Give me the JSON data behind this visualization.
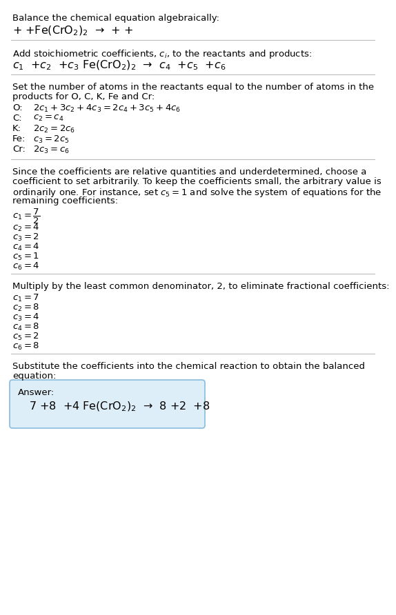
{
  "bg_color": "#ffffff",
  "text_color": "#000000",
  "separator_color": "#bbbbbb",
  "answer_box_color": "#deeef8",
  "answer_box_edge": "#88bbdd",
  "font_size": 9.5,
  "font_size_eq": 11.5,
  "sections": {
    "s0_title": "Balance the chemical equation algebraically:",
    "s0_reaction": "+ +Fe(CrO$_2$)$_2$  →  + +",
    "s1_header": "Add stoichiometric coefficients, $c_i$, to the reactants and products:",
    "s1_eq": "$c_1$  +$c_2$  +$c_3$ Fe(CrO$_2$)$_2$  →  $c_4$  +$c_5$  +$c_6$",
    "s2_header1": "Set the number of atoms in the reactants equal to the number of atoms in the",
    "s2_header2": "products for O, C, K, Fe and Cr:",
    "atom_labels": [
      "O:",
      "C:",
      "K:",
      "Fe:",
      "Cr:"
    ],
    "atom_eqs": [
      "$2c_1 + 3c_2 + 4c_3 = 2c_4 + 3c_5 + 4c_6$",
      "$c_2 = c_4$",
      "$2c_2 = 2c_6$",
      "$c_3 = 2c_5$",
      "$2c_3 = c_6$"
    ],
    "s3_lines": [
      "Since the coefficients are relative quantities and underdetermined, choose a",
      "coefficient to set arbitrarily. To keep the coefficients small, the arbitrary value is",
      "ordinarily one. For instance, set $c_5 = 1$ and solve the system of equations for the",
      "remaining coefficients:"
    ],
    "coeff1_frac": "$c_1 = \\dfrac{7}{2}$",
    "coeff1_rest": [
      "$c_2 = 4$",
      "$c_3 = 2$",
      "$c_4 = 4$",
      "$c_5 = 1$",
      "$c_6 = 4$"
    ],
    "s4_header": "Multiply by the least common denominator, 2, to eliminate fractional coefficients:",
    "coeff2": [
      "$c_1 = 7$",
      "$c_2 = 8$",
      "$c_3 = 4$",
      "$c_4 = 8$",
      "$c_5 = 2$",
      "$c_6 = 8$"
    ],
    "s5_header1": "Substitute the coefficients into the chemical reaction to obtain the balanced",
    "s5_header2": "equation:",
    "answer_label": "Answer:",
    "answer_eq": "$7$ +$8$  +$4$ Fe(CrO$_2$)$_2$  →  $8$ +$2$  +$8$"
  }
}
